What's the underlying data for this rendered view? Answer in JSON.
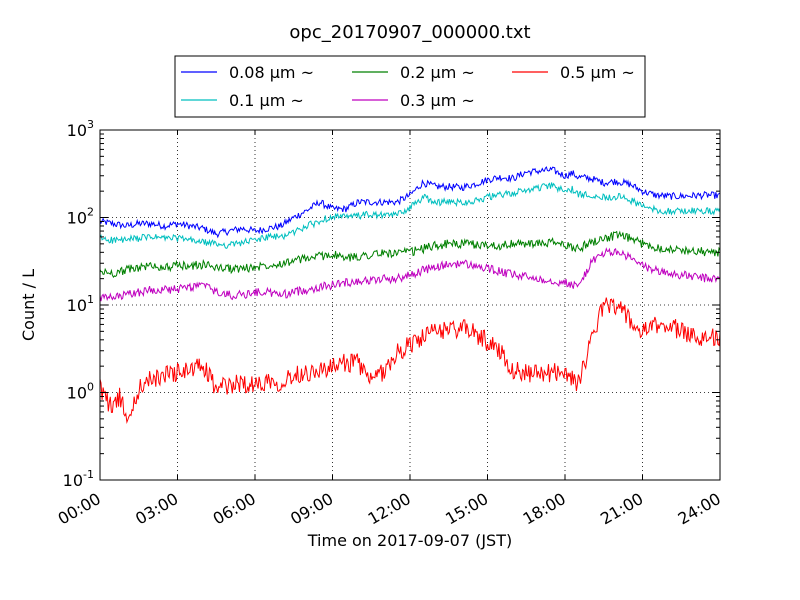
{
  "chart_data": {
    "type": "line",
    "title": "opc_20170907_000000.txt",
    "xlabel": "Time on 2017-09-07 (JST)",
    "ylabel": "Count / L",
    "x_range_hours": [
      0,
      24
    ],
    "yscale": "log",
    "ylim": [
      0.1,
      1000
    ],
    "grid": true,
    "legend_placement": "top-center",
    "x_ticks": [
      "00:00",
      "03:00",
      "06:00",
      "09:00",
      "12:00",
      "15:00",
      "18:00",
      "21:00",
      "24:00"
    ],
    "y_ticks": [
      {
        "base": "10",
        "exp": "-1",
        "value": 0.1
      },
      {
        "base": "10",
        "exp": "0",
        "value": 1
      },
      {
        "base": "10",
        "exp": "1",
        "value": 10
      },
      {
        "base": "10",
        "exp": "2",
        "value": 100
      },
      {
        "base": "10",
        "exp": "3",
        "value": 1000
      }
    ],
    "series": [
      {
        "name": "0.08 μm ~",
        "legend_value": "0.08",
        "color": "#0000ff",
        "x": [
          0,
          0.5,
          1,
          1.5,
          2,
          2.5,
          3,
          3.5,
          4,
          4.5,
          5,
          5.5,
          6,
          6.5,
          7,
          7.5,
          8,
          8.5,
          9,
          9.5,
          10,
          10.5,
          11,
          11.5,
          12,
          12.5,
          13,
          13.5,
          14,
          14.5,
          15,
          15.5,
          16,
          16.5,
          17,
          17.5,
          18,
          18.3,
          18.5,
          19,
          19.5,
          20,
          20.5,
          21,
          21.5,
          22,
          22.5,
          23,
          23.5,
          24
        ],
        "y": [
          90,
          85,
          80,
          85,
          85,
          80,
          85,
          80,
          75,
          65,
          70,
          75,
          70,
          75,
          80,
          100,
          120,
          150,
          125,
          125,
          150,
          150,
          150,
          150,
          180,
          250,
          225,
          225,
          220,
          240,
          270,
          290,
          280,
          330,
          340,
          350,
          300,
          320,
          290,
          280,
          250,
          260,
          240,
          200,
          180,
          175,
          175,
          178,
          180,
          178
        ]
      },
      {
        "name": "0.1 μm ~",
        "legend_value": "0.1",
        "color": "#00bfbf",
        "x": [
          0,
          0.5,
          1,
          1.5,
          2,
          2.5,
          3,
          3.5,
          4,
          4.5,
          5,
          5.5,
          6,
          6.5,
          7,
          7.5,
          8,
          8.5,
          9,
          9.5,
          10,
          10.5,
          11,
          11.5,
          12,
          12.5,
          13,
          13.5,
          14,
          14.5,
          15,
          15.5,
          16,
          16.5,
          17,
          17.5,
          18,
          18.3,
          18.5,
          19,
          19.5,
          20,
          20.5,
          21,
          21.5,
          22,
          22.5,
          23,
          23.5,
          24
        ],
        "y": [
          58,
          55,
          55,
          58,
          60,
          58,
          58,
          55,
          52,
          50,
          48,
          52,
          55,
          60,
          60,
          68,
          80,
          90,
          105,
          100,
          105,
          108,
          105,
          108,
          130,
          170,
          150,
          150,
          150,
          155,
          170,
          180,
          190,
          205,
          220,
          230,
          200,
          210,
          180,
          185,
          170,
          175,
          160,
          135,
          122,
          118,
          118,
          120,
          118,
          118
        ]
      },
      {
        "name": "0.2 μm ~",
        "legend_value": "0.2",
        "color": "#008000",
        "x": [
          0,
          0.5,
          1,
          1.5,
          2,
          2.5,
          3,
          3.5,
          4,
          4.5,
          5,
          5.5,
          6,
          6.5,
          7,
          7.5,
          8,
          8.5,
          9,
          9.5,
          10,
          10.5,
          11,
          11.5,
          12,
          12.5,
          13,
          13.5,
          14,
          14.5,
          15,
          15.5,
          16,
          16.5,
          17,
          17.5,
          18,
          18.3,
          18.5,
          19,
          19.5,
          20,
          20.5,
          21,
          21.5,
          22,
          22.5,
          23,
          23.5,
          24
        ],
        "y": [
          24,
          23,
          25,
          27,
          28,
          27,
          28,
          28,
          29,
          27,
          26,
          26,
          27,
          29,
          30,
          32,
          34,
          36,
          38,
          34,
          36,
          38,
          39,
          39,
          40,
          44,
          48,
          50,
          50,
          49,
          48,
          48,
          50,
          50,
          50,
          52,
          48,
          46,
          44,
          52,
          58,
          62,
          58,
          50,
          46,
          44,
          42,
          42,
          40,
          40
        ]
      },
      {
        "name": "0.3 μm ~",
        "legend_value": "0.3",
        "color": "#bf00bf",
        "x": [
          0,
          0.5,
          1,
          1.5,
          2,
          2.5,
          3,
          3.5,
          4,
          4.5,
          5,
          5.5,
          6,
          6.5,
          7,
          7.5,
          8,
          8.5,
          9,
          9.5,
          10,
          10.5,
          11,
          11.5,
          12,
          12.5,
          13,
          13.5,
          14,
          14.5,
          15,
          15.5,
          16,
          16.5,
          17,
          17.5,
          18,
          18.3,
          18.5,
          19,
          19.5,
          20,
          20.5,
          21,
          21.5,
          22,
          22.5,
          23,
          23.5,
          24
        ],
        "y": [
          12,
          12,
          13,
          14,
          15,
          15,
          15,
          16,
          17,
          14,
          13,
          13,
          14,
          14,
          13,
          14,
          15,
          16,
          17,
          18,
          19,
          19,
          20,
          20,
          22,
          25,
          27,
          29,
          30,
          28,
          26,
          24,
          22,
          21,
          20,
          19,
          18,
          17,
          16,
          30,
          40,
          40,
          35,
          28,
          25,
          23,
          22,
          21,
          20,
          20
        ]
      },
      {
        "name": "0.5 μm ~",
        "legend_value": "0.5",
        "color": "#ff0000",
        "x": [
          0,
          0.25,
          0.5,
          0.75,
          1,
          1.25,
          1.5,
          1.75,
          2,
          2.5,
          3,
          3.5,
          4,
          4.25,
          4.5,
          5,
          5.5,
          6,
          6.5,
          7,
          7.5,
          8,
          8.5,
          9,
          9.5,
          10,
          10.5,
          11,
          11.5,
          12,
          12.5,
          13,
          13.5,
          14,
          14.5,
          15,
          15.5,
          16,
          16.5,
          17,
          17.5,
          18,
          18.25,
          18.5,
          18.75,
          19,
          19.25,
          19.5,
          19.75,
          20,
          20.25,
          20.5,
          20.75,
          21,
          21.5,
          22,
          22.5,
          23,
          23.5,
          24
        ],
        "y": [
          1.2,
          0.8,
          0.7,
          0.9,
          0.55,
          0.6,
          1.1,
          1.3,
          1.4,
          1.6,
          1.7,
          1.8,
          2.0,
          1.5,
          1.1,
          1.2,
          1.3,
          1.2,
          1.4,
          1.3,
          1.6,
          1.7,
          1.8,
          1.9,
          2.2,
          2.2,
          1.3,
          1.8,
          2.8,
          3.6,
          4.2,
          5.0,
          5.3,
          5.5,
          4.8,
          3.8,
          3.0,
          1.8,
          1.7,
          1.6,
          1.7,
          1.8,
          1.4,
          1.3,
          2.2,
          3.5,
          6.5,
          9.5,
          10.5,
          10.0,
          8.5,
          6.5,
          5.5,
          4.8,
          5.8,
          6.0,
          5.0,
          4.5,
          4.3,
          4.2
        ]
      }
    ]
  }
}
